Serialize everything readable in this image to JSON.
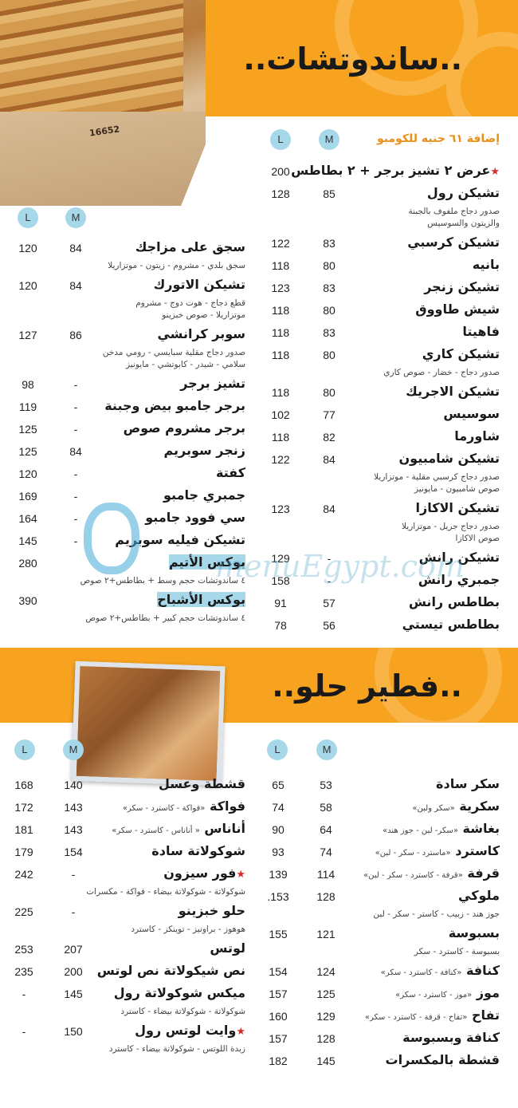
{
  "sandwiches": {
    "title": "..ساندوتشات..",
    "combo_note": "إضافة ٦١ جنيه للكومبو",
    "size_m": "M",
    "size_l": "L",
    "box_print": "16652",
    "right_items": [
      {
        "name": "عرض ٢ تشيز برجر + ٢ بطاطس",
        "star": true,
        "m": "",
        "l": "200"
      },
      {
        "name": "تشيكن رول",
        "m": "85",
        "l": "128",
        "desc": [
          "صدور دجاج ملفوف بالجبنة",
          "والزيتون والسوسيس"
        ]
      },
      {
        "name": "تشيكن كرسبي",
        "m": "83",
        "l": "122"
      },
      {
        "name": "بانيه",
        "m": "80",
        "l": "118"
      },
      {
        "name": "تشيكن زنجر",
        "m": "83",
        "l": "123"
      },
      {
        "name": "شيش طاووق",
        "m": "80",
        "l": "118"
      },
      {
        "name": "فاهيتا",
        "m": "83",
        "l": "118"
      },
      {
        "name": "تشيكن كاري",
        "m": "80",
        "l": "118",
        "desc": [
          "صدور دجاج - خضار - صوص كاري"
        ]
      },
      {
        "name": "تشيكن الاجريك",
        "m": "80",
        "l": "118"
      },
      {
        "name": "سوسيس",
        "m": "77",
        "l": "102"
      },
      {
        "name": "شاورما",
        "m": "82",
        "l": "118"
      },
      {
        "name": "تشيكن شامبيون",
        "m": "84",
        "l": "122",
        "desc": [
          "صدور دجاج كرسبي مقلية - موتزاريلا",
          "صوص شامبيون - مايونيز"
        ]
      },
      {
        "name": "تشيكن الاكازا",
        "m": "84",
        "l": "123",
        "desc": [
          "صدور دجاج جريل - موتزاريلا",
          "صوص الاكازا"
        ]
      },
      {
        "name": "تشيكن رانش",
        "m": "-",
        "l": "129"
      },
      {
        "name": "جمبري رانش",
        "m": "-",
        "l": "158"
      },
      {
        "name": "بطاطس رانش",
        "m": "57",
        "l": "91"
      },
      {
        "name": "بطاطس تيستي",
        "m": "56",
        "l": "78"
      }
    ],
    "left_items": [
      {
        "name": "سجق على مزاجك",
        "m": "84",
        "l": "120",
        "desc": [
          "سجق بلدي - مشروم - زيتون - موتزاريلا"
        ]
      },
      {
        "name": "تشيكن الاتورك",
        "m": "84",
        "l": "120",
        "desc": [
          "قطع دجاج - هوت دوج - مشروم",
          "موتزاريلا - صوص خبزينو"
        ]
      },
      {
        "name": "سوبر كرانشي",
        "m": "86",
        "l": "127",
        "desc": [
          "صدور دجاج مقلية سبايسي - رومي مدخن",
          "سلامي - شيدر - كابوتشي - مايونيز"
        ]
      },
      {
        "name": "تشيز برجر",
        "m": "-",
        "l": "98"
      },
      {
        "name": "برجر جامبو بيض وجبنة",
        "m": "-",
        "l": "119"
      },
      {
        "name": "برجر مشروم صوص",
        "m": "-",
        "l": "125"
      },
      {
        "name": "زنجر سوبريم",
        "m": "84",
        "l": "125"
      },
      {
        "name": "كفتة",
        "m": "-",
        "l": "120"
      },
      {
        "name": "جمبري جامبو",
        "m": "-",
        "l": "169"
      },
      {
        "name": "سي فوود جامبو",
        "m": "-",
        "l": "164"
      },
      {
        "name": "تشيكن فيليه سوبريم",
        "m": "-",
        "l": "145"
      },
      {
        "name": "بوكس الأتيم",
        "highlight": true,
        "m": "",
        "l": "280",
        "desc": [
          "٤ ساندوتشات حجم وسط + بطاطس+٢ صوص"
        ]
      },
      {
        "name": "بوكس الأشباح",
        "highlight": true,
        "m": "",
        "l": "390",
        "desc": [
          "٤ ساندوتشات حجم كبير + بطاطس+٢ صوص"
        ]
      }
    ]
  },
  "sweet_pies": {
    "title": "..فطير حلو..",
    "size_m": "M",
    "size_l": "L",
    "right_items": [
      {
        "name": "سكر سادة",
        "m": "53",
        "l": "65"
      },
      {
        "name": "سكرية",
        "inline": "«سكر ولبن»",
        "m": "58",
        "l": "74"
      },
      {
        "name": "بغاشة",
        "inline": "«سكر- لبن - جوز هند»",
        "m": "64",
        "l": "90"
      },
      {
        "name": "كاسترد",
        "inline": "«ماسترد - سكر - لبن»",
        "m": "74",
        "l": "93"
      },
      {
        "name": "قرفة",
        "inline": "«قرفة - كاسترد - سكر - لبن»",
        "m": "114",
        "l": "139"
      },
      {
        "name": "ملوكي",
        "m": "128",
        "l": ".153",
        "desc": [
          "جوز هند - زبيب - كاستر - سكر - لبن"
        ]
      },
      {
        "name": "بسبوسة",
        "m": "121",
        "l": "155",
        "desc": [
          "بسبوسة - كاسترد - سكر"
        ]
      },
      {
        "name": "كنافة",
        "inline": "«كنافة - كاسترد - سكر»",
        "m": "124",
        "l": "154"
      },
      {
        "name": "موز",
        "inline": "«موز - كاسترد - سكر»",
        "m": "125",
        "l": "157"
      },
      {
        "name": "تفاح",
        "inline": "«تفاح - قرفة - كاسترد - سكر»",
        "m": "129",
        "l": "160"
      },
      {
        "name": "كنافة وبسبوسة",
        "m": "128",
        "l": "157"
      },
      {
        "name": "قشطة بالمكسرات",
        "m": "145",
        "l": "182"
      }
    ],
    "left_items": [
      {
        "name": "قشطة وعسل",
        "m": "140",
        "l": "168"
      },
      {
        "name": "فواكة",
        "inline": "«فواكة - كاسترد - سكر»",
        "m": "143",
        "l": "172"
      },
      {
        "name": "أناناس",
        "inline": "« أناناس - كاسترد - سكر»",
        "m": "143",
        "l": "181"
      },
      {
        "name": "شوكولاتة سادة",
        "m": "154",
        "l": "179"
      },
      {
        "name": "فور سيزون",
        "star": true,
        "m": "-",
        "l": "242",
        "desc": [
          "شوكولاتة - شوكولاتة بيضاء - فواكة - مكسرات"
        ]
      },
      {
        "name": "حلو خبزينو",
        "m": "-",
        "l": "225",
        "desc": [
          "هوهوز - براونيز - توينكز - كاسترد"
        ]
      },
      {
        "name": "لوتس",
        "m": "207",
        "l": "253"
      },
      {
        "name": "نص شيكولاتة نص لوتس",
        "m": "200",
        "l": "235"
      },
      {
        "name": "ميكس شوكولاتة رول",
        "m": "145",
        "l": "-",
        "desc": [
          "شوكولاتة - شوكولاتة بيضاء - كاسترد"
        ]
      },
      {
        "name": "وايت لوتس رول",
        "star": true,
        "m": "150",
        "l": "-",
        "desc": [
          "زبدة اللوتس - شوكولاتة بيضاء - كاسترد"
        ]
      }
    ]
  },
  "watermark": "menuEgypt.com",
  "colors": {
    "accent": "#f7a320",
    "size_badge": "#a7d8ea",
    "star": "#d52b2b",
    "combo_note": "#e8901a"
  }
}
